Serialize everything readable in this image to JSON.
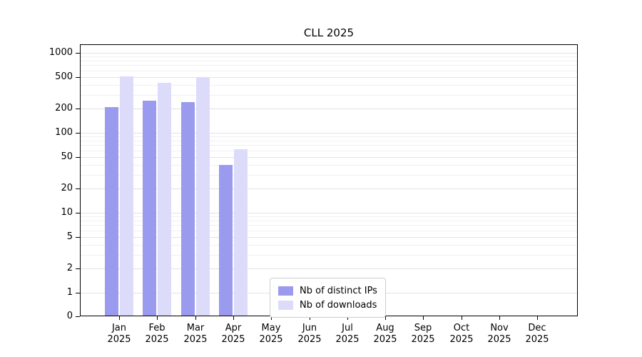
{
  "chart_data": {
    "type": "bar",
    "title": "CLL 2025",
    "categories": [
      "Jan 2025",
      "Feb 2025",
      "Mar 2025",
      "Apr 2025",
      "May 2025",
      "Jun 2025",
      "Jul 2025",
      "Aug 2025",
      "Sep 2025",
      "Oct 2025",
      "Nov 2025",
      "Dec 2025"
    ],
    "series": [
      {
        "name": "Nb of distinct IPs",
        "color": "#9a9aef",
        "values": [
          210,
          250,
          240,
          40,
          0,
          0,
          0,
          0,
          0,
          0,
          0,
          0
        ]
      },
      {
        "name": "Nb of downloads",
        "color": "#dcdcfa",
        "values": [
          510,
          420,
          500,
          62,
          0,
          0,
          0,
          0,
          0,
          0,
          0,
          0
        ]
      }
    ],
    "yticks": [
      0,
      1,
      2,
      5,
      10,
      20,
      50,
      100,
      200,
      500,
      1000
    ],
    "minor_yticks": [
      3,
      4,
      6,
      7,
      8,
      9,
      30,
      40,
      60,
      70,
      80,
      90,
      300,
      400,
      600,
      700,
      800,
      900
    ],
    "scale": "symlog",
    "ylim": [
      0,
      1280
    ],
    "xlabel": "",
    "ylabel": "",
    "grid": true,
    "legend_position": "lower center",
    "colors": {
      "major_grid": "#e2e2e2",
      "minor_grid": "#f0f0f0",
      "axis": "#000000",
      "background": "#ffffff"
    }
  }
}
